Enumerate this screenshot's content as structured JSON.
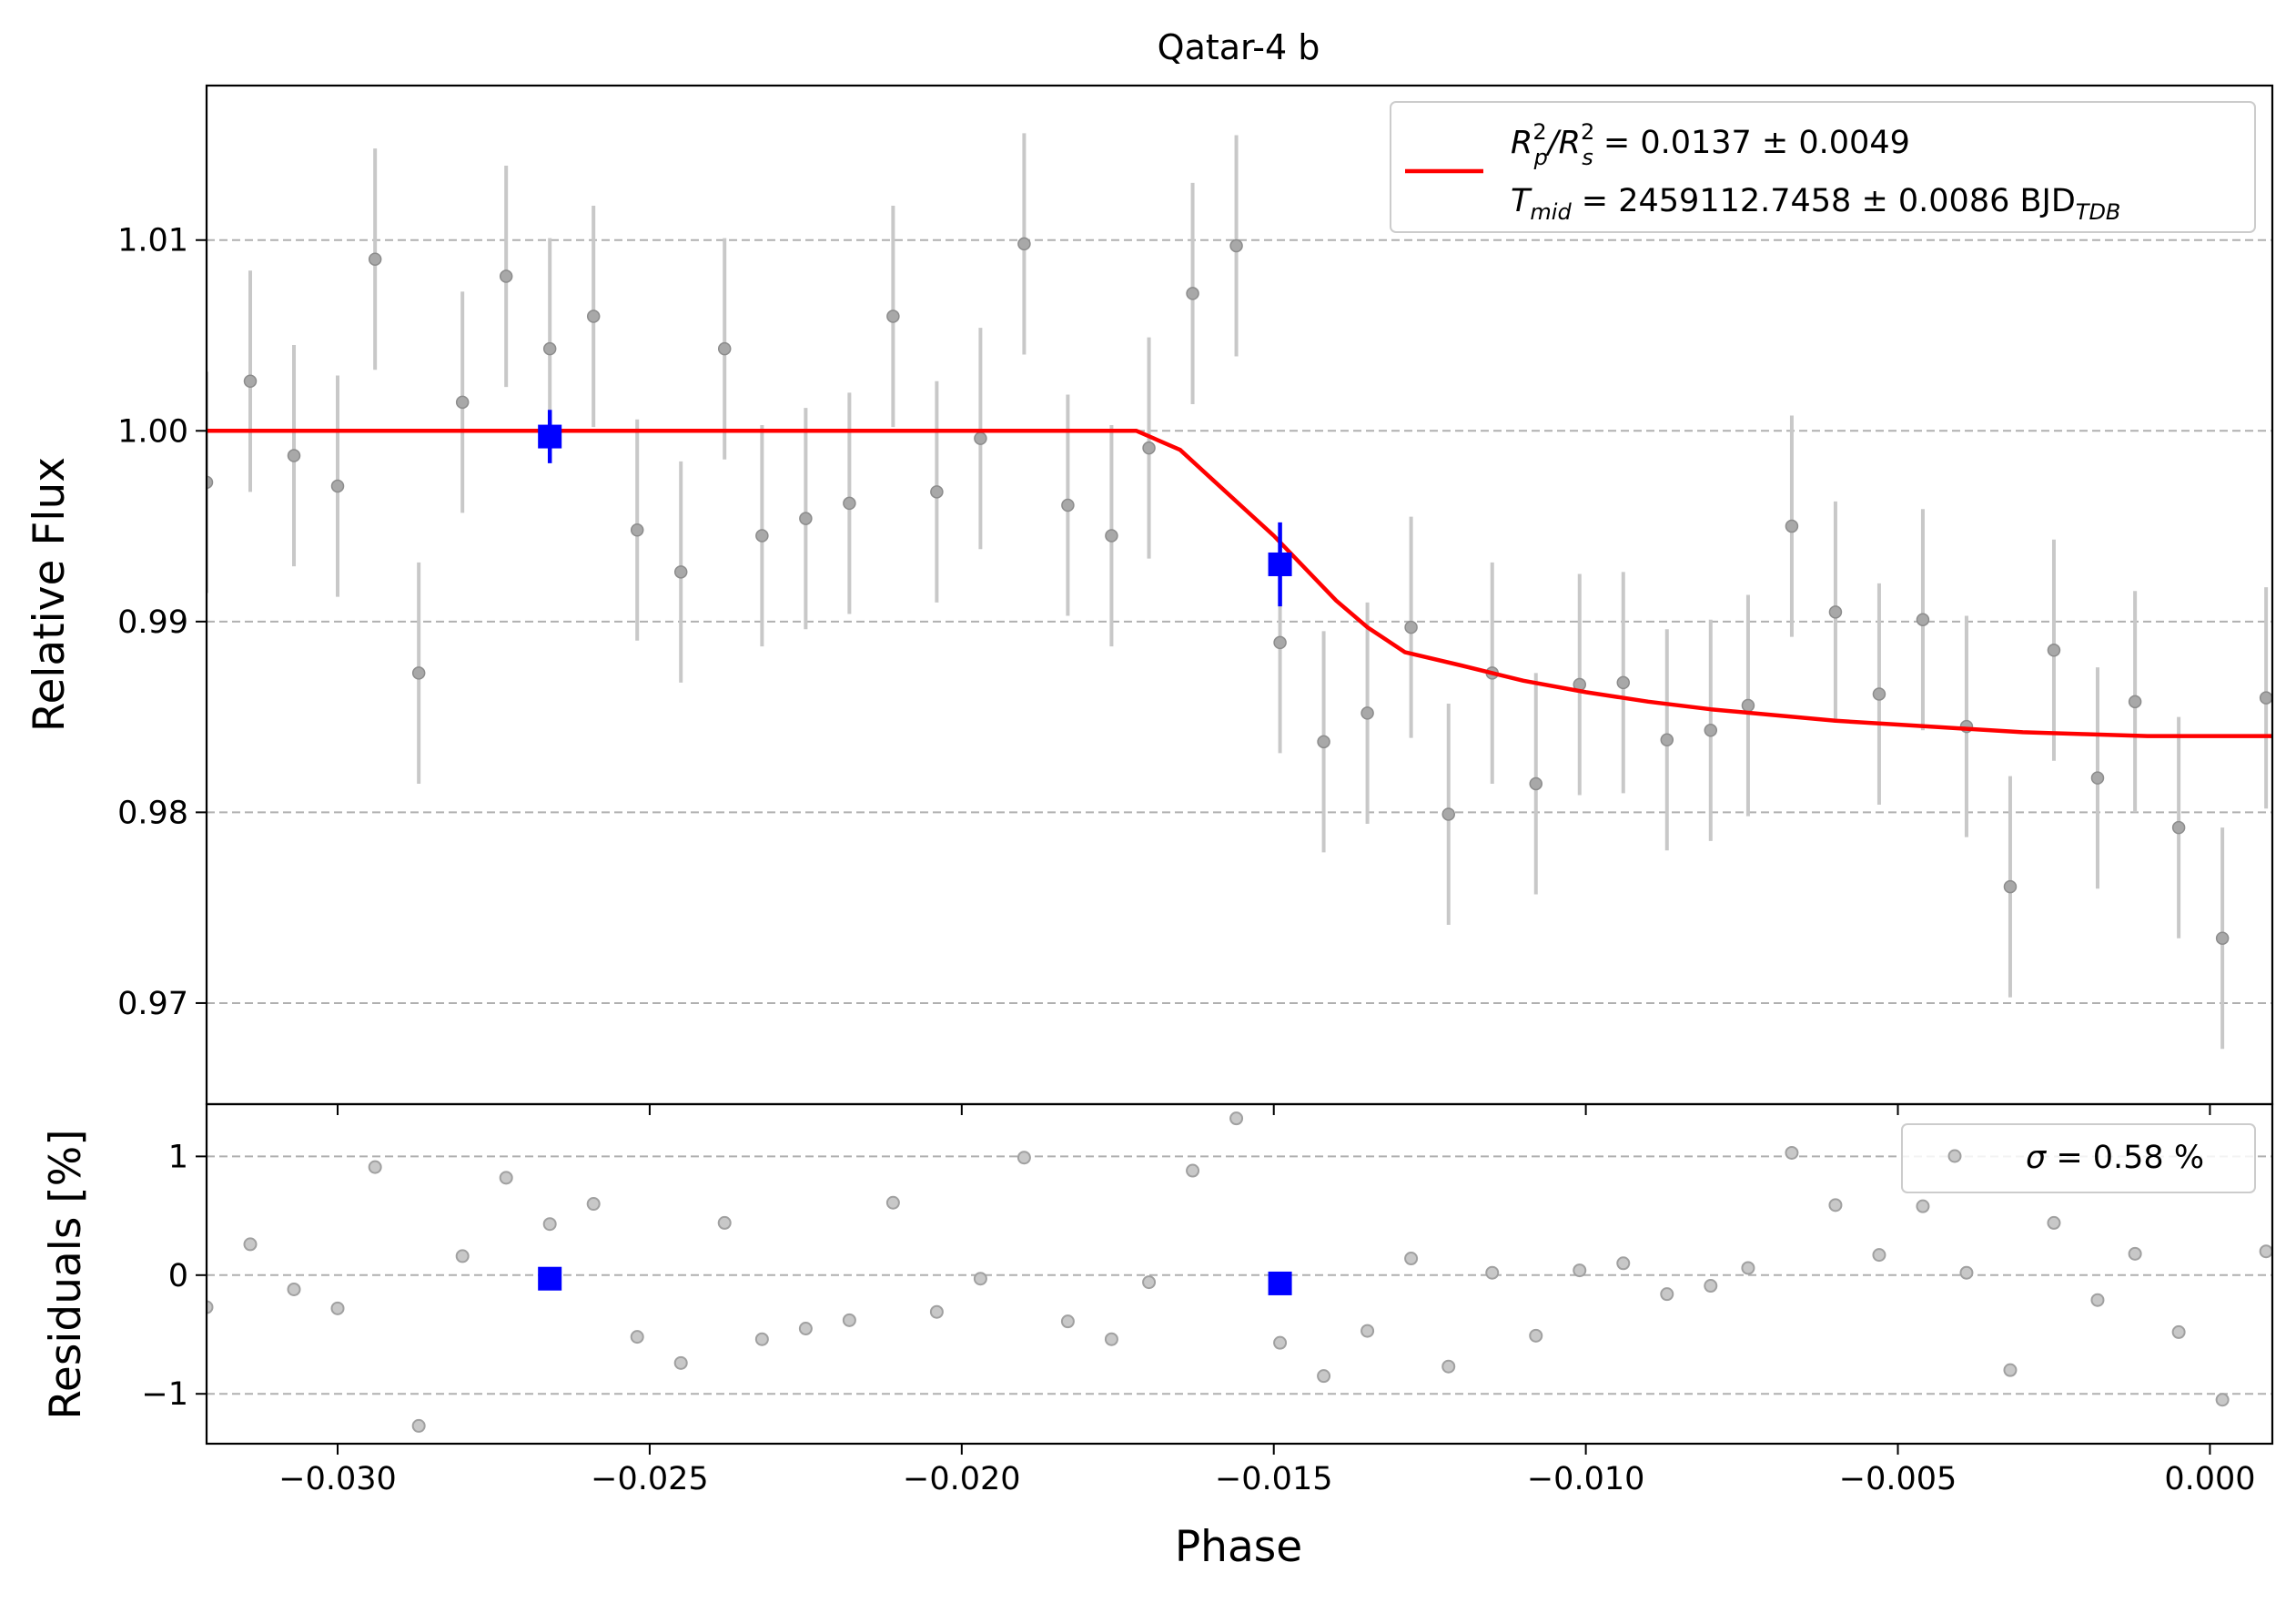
{
  "chart_data": [
    {
      "type": "scatter",
      "panel": "top",
      "title": "Qatar-4 b",
      "xlabel": "",
      "ylabel": "Relative Flux",
      "xlim": [
        -0.0321,
        0.001
      ],
      "ylim": [
        0.9647,
        1.0181
      ],
      "xticks": [
        -0.03,
        -0.025,
        -0.02,
        -0.015,
        -0.01,
        -0.005,
        0.0
      ],
      "xtick_labels": [
        "",
        "",
        "",
        "",
        "",
        "",
        ""
      ],
      "yticks": [
        0.97,
        0.98,
        0.99,
        1.0,
        1.01
      ],
      "ytick_labels": [
        "0.97",
        "0.98",
        "0.99",
        "1.00",
        "1.01"
      ],
      "grid": "y-dashed",
      "legend_position": "top-right",
      "colors": {
        "data": "#808080",
        "errorbar": "#c8c8c8",
        "binned": "#0000ff",
        "model": "#ff0000",
        "grid": "#b0b0b0"
      },
      "series": [
        {
          "kind": "points",
          "x": [
            -0.0321,
            -0.0314,
            -0.0307,
            -0.03,
            -0.0294,
            -0.0287,
            -0.028,
            -0.0273,
            -0.0266,
            -0.0259,
            -0.0252,
            -0.0245,
            -0.0238,
            -0.0232,
            -0.0225,
            -0.0218,
            -0.0211,
            -0.0204,
            -0.0197,
            -0.019,
            -0.0183,
            -0.0176,
            -0.017,
            -0.0163,
            -0.0156,
            -0.0149,
            -0.0142,
            -0.0135,
            -0.0128,
            -0.0122,
            -0.0115,
            -0.0108,
            -0.0101,
            -0.0094,
            -0.0087,
            -0.008,
            -0.0074,
            -0.0067,
            -0.006,
            -0.0053,
            -0.0046,
            -0.0039,
            -0.0032,
            -0.0025,
            -0.0018,
            -0.0012,
            -0.0005,
            0.0002,
            0.0009
          ],
          "y": [
            0.9973,
            1.0026,
            0.9987,
            0.9971,
            1.009,
            0.9873,
            1.0015,
            1.0081,
            1.0043,
            1.006,
            0.9948,
            0.9926,
            1.0043,
            0.9945,
            0.9954,
            0.9962,
            1.006,
            0.9968,
            0.9996,
            1.0098,
            0.9961,
            0.9945,
            0.9991,
            1.0072,
            1.0097,
            0.9889,
            0.9837,
            0.9852,
            0.9897,
            0.9799,
            0.9873,
            0.9815,
            0.9867,
            0.9868,
            0.9838,
            0.9843,
            0.9856,
            0.995,
            0.9905,
            0.9862,
            0.9901,
            0.9845,
            0.9761,
            0.9885,
            0.9818,
            0.9858,
            0.9792,
            0.9734,
            0.986
          ],
          "yerr": 0.0058
        },
        {
          "kind": "binned",
          "x": [
            -0.0266,
            -0.0149
          ],
          "y": [
            0.9997,
            0.993
          ],
          "yerr": [
            0.0014,
            0.0022
          ]
        },
        {
          "kind": "model",
          "name": "R_p^2/R_s^2 = 0.0137 ± 0.0049 | T_mid = 2459112.7458 ± 0.0086 BJD_TDB",
          "baseline": 1.0,
          "depth": 0.016,
          "t1": -0.0172,
          "t2": -0.0129,
          "x": [
            -0.0321,
            -0.0172,
            -0.0165,
            -0.016,
            -0.0155,
            -0.015,
            -0.0145,
            -0.014,
            -0.0135,
            -0.0129,
            -0.012,
            -0.011,
            -0.01,
            -0.009,
            -0.008,
            -0.007,
            -0.006,
            -0.005,
            -0.004,
            -0.003,
            -0.002,
            -0.001,
            0.0,
            0.001
          ],
          "y": [
            1.0,
            1.0,
            0.999,
            0.9975,
            0.996,
            0.9945,
            0.9928,
            0.9911,
            0.9897,
            0.9884,
            0.9877,
            0.9869,
            0.9863,
            0.9858,
            0.9854,
            0.9851,
            0.9848,
            0.9846,
            0.9844,
            0.9842,
            0.9841,
            0.984,
            0.984,
            0.984
          ]
        }
      ]
    },
    {
      "type": "scatter",
      "panel": "bottom",
      "title": "",
      "xlabel": "Phase",
      "ylabel": "Residuals [%]",
      "xlim": [
        -0.0321,
        0.001
      ],
      "ylim": [
        -1.42,
        1.44
      ],
      "xticks": [
        -0.03,
        -0.025,
        -0.02,
        -0.015,
        -0.01,
        -0.005,
        0.0
      ],
      "xtick_labels": [
        "−0.030",
        "−0.025",
        "−0.020",
        "−0.015",
        "−0.010",
        "−0.005",
        "0.000"
      ],
      "yticks": [
        -1,
        0,
        1
      ],
      "ytick_labels": [
        "−1",
        "0",
        "1"
      ],
      "grid": "y-dashed",
      "legend_position": "top-right",
      "series": [
        {
          "kind": "points",
          "name": "σ = 0.58 %",
          "x": [
            -0.0321,
            -0.0314,
            -0.0307,
            -0.03,
            -0.0294,
            -0.0287,
            -0.028,
            -0.0273,
            -0.0266,
            -0.0259,
            -0.0252,
            -0.0245,
            -0.0238,
            -0.0232,
            -0.0225,
            -0.0218,
            -0.0211,
            -0.0204,
            -0.0197,
            -0.019,
            -0.0183,
            -0.0176,
            -0.017,
            -0.0163,
            -0.0156,
            -0.0149,
            -0.0142,
            -0.0135,
            -0.0128,
            -0.0122,
            -0.0115,
            -0.0108,
            -0.0101,
            -0.0094,
            -0.0087,
            -0.008,
            -0.0074,
            -0.0067,
            -0.006,
            -0.0053,
            -0.0046,
            -0.0039,
            -0.0032,
            -0.0025,
            -0.0018,
            -0.0012,
            -0.0005,
            0.0002,
            0.0009
          ],
          "y": [
            -0.27,
            0.26,
            -0.12,
            -0.28,
            0.91,
            -1.27,
            0.16,
            0.82,
            0.43,
            0.6,
            -0.52,
            -0.74,
            0.44,
            -0.54,
            -0.45,
            -0.38,
            0.61,
            -0.31,
            -0.03,
            0.99,
            -0.39,
            -0.54,
            -0.06,
            0.88,
            1.32,
            -0.57,
            -0.85,
            -0.47,
            0.14,
            -0.77,
            0.02,
            -0.51,
            0.04,
            0.1,
            -0.16,
            -0.09,
            0.06,
            1.03,
            0.59,
            0.17,
            0.58,
            0.02,
            -0.8,
            0.44,
            -0.21,
            0.18,
            -0.48,
            -1.05,
            0.2
          ]
        },
        {
          "kind": "binned",
          "x": [
            -0.0266,
            -0.0149
          ],
          "y": [
            -0.03,
            -0.07
          ]
        }
      ]
    }
  ],
  "legend": {
    "top": {
      "line1_main": "R",
      "line1_sup1": "2",
      "line1_sub1": "p",
      "line1_slash": "/R",
      "line1_sup2": "2",
      "line1_sub2": "s",
      "line1_value": " = 0.0137 ± 0.0049",
      "line2_main": "T",
      "line2_sub": "mid",
      "line2_value": " = 2459112.7458 ± 0.0086 BJD",
      "line2_unit_sub": "TDB"
    },
    "bottom": {
      "sigma_symbol": "σ",
      "sigma_text": " = 0.58 %"
    }
  }
}
